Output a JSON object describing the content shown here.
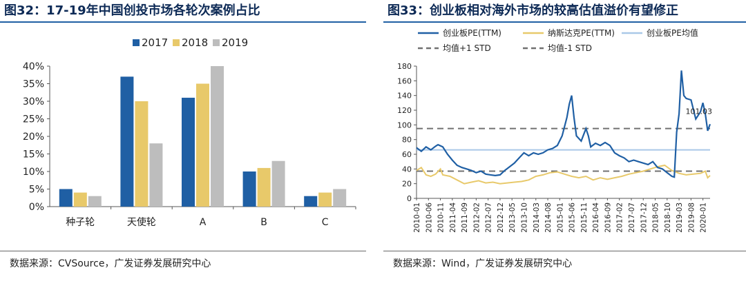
{
  "left": {
    "title": "图32：17-19年中国创投市场各轮次案例占比",
    "source": "数据来源：CVSource，广发证券发展研究中心"
  },
  "right": {
    "title": "图33：创业板相对海外市场的较高估值溢价有望修正",
    "source": "数据来源：Wind，广发证券发展研究中心"
  },
  "colors": {
    "y2017": "#1f5fa4",
    "y2018": "#e8c96a",
    "y2019": "#bdbdbd",
    "chinext": "#1f5fa4",
    "nasdaq": "#e8c96a",
    "mean": "#a9c8e8",
    "std": "#707070",
    "title": "#0d2a56"
  },
  "chart_data": [
    {
      "type": "bar",
      "categories": [
        "种子轮",
        "天使轮",
        "A",
        "B",
        "C"
      ],
      "series": [
        {
          "name": "2017",
          "values": [
            5,
            37,
            31,
            10,
            3
          ]
        },
        {
          "name": "2018",
          "values": [
            4,
            30,
            35,
            11,
            4
          ]
        },
        {
          "name": "2019",
          "values": [
            3,
            18,
            40,
            13,
            5
          ]
        }
      ],
      "ylim": [
        0,
        40
      ],
      "yticks": [
        "0%",
        "5%",
        "10%",
        "15%",
        "20%",
        "25%",
        "30%",
        "35%",
        "40%"
      ],
      "legend": "top",
      "grid": false
    },
    {
      "type": "line",
      "x_ticks": [
        "2010-01",
        "2010-06",
        "2010-11",
        "2011-04",
        "2011-09",
        "2012-02",
        "2012-07",
        "2012-12",
        "2013-05",
        "2013-10",
        "2014-03",
        "2014-08",
        "2015-01",
        "2015-06",
        "2015-11",
        "2016-04",
        "2016-09",
        "2017-02",
        "2017-07",
        "2017-12",
        "2018-05",
        "2018-10",
        "2019-03",
        "2019-08",
        "2020-01"
      ],
      "ylim": [
        0,
        180
      ],
      "yticks": [
        "0",
        "20",
        "40",
        "60",
        "80",
        "100",
        "120",
        "140",
        "160",
        "180"
      ],
      "legend": "top",
      "grid": false,
      "series": [
        {
          "name": "创业板PE(TTM)",
          "points": [
            [
              "2010-01",
              69
            ],
            [
              "2010-03",
              64
            ],
            [
              "2010-05",
              70
            ],
            [
              "2010-07",
              66
            ],
            [
              "2010-09",
              71
            ],
            [
              "2010-10",
              73
            ],
            [
              "2010-12",
              70
            ],
            [
              "2011-02",
              60
            ],
            [
              "2011-04",
              52
            ],
            [
              "2011-06",
              45
            ],
            [
              "2011-08",
              42
            ],
            [
              "2011-10",
              40
            ],
            [
              "2011-12",
              38
            ],
            [
              "2012-02",
              35
            ],
            [
              "2012-04",
              37
            ],
            [
              "2012-06",
              33
            ],
            [
              "2012-08",
              32
            ],
            [
              "2012-10",
              31
            ],
            [
              "2012-12",
              32
            ],
            [
              "2013-02",
              38
            ],
            [
              "2013-04",
              43
            ],
            [
              "2013-06",
              48
            ],
            [
              "2013-08",
              55
            ],
            [
              "2013-10",
              62
            ],
            [
              "2013-12",
              58
            ],
            [
              "2014-02",
              62
            ],
            [
              "2014-04",
              60
            ],
            [
              "2014-06",
              62
            ],
            [
              "2014-08",
              66
            ],
            [
              "2014-10",
              68
            ],
            [
              "2014-12",
              72
            ],
            [
              "2015-02",
              85
            ],
            [
              "2015-04",
              110
            ],
            [
              "2015-05",
              128
            ],
            [
              "2015-06",
              140
            ],
            [
              "2015-07",
              110
            ],
            [
              "2015-08",
              85
            ],
            [
              "2015-10",
              78
            ],
            [
              "2015-12",
              95
            ],
            [
              "2016-01",
              85
            ],
            [
              "2016-02",
              70
            ],
            [
              "2016-04",
              75
            ],
            [
              "2016-06",
              72
            ],
            [
              "2016-08",
              76
            ],
            [
              "2016-10",
              72
            ],
            [
              "2016-12",
              62
            ],
            [
              "2017-02",
              58
            ],
            [
              "2017-04",
              55
            ],
            [
              "2017-06",
              50
            ],
            [
              "2017-08",
              52
            ],
            [
              "2017-10",
              50
            ],
            [
              "2017-12",
              48
            ],
            [
              "2018-02",
              46
            ],
            [
              "2018-04",
              50
            ],
            [
              "2018-06",
              42
            ],
            [
              "2018-08",
              40
            ],
            [
              "2018-10",
              35
            ],
            [
              "2018-12",
              30
            ],
            [
              "2019-01",
              29
            ],
            [
              "2019-02",
              90
            ],
            [
              "2019-03",
              115
            ],
            [
              "2019-04",
              174
            ],
            [
              "2019-05",
              140
            ],
            [
              "2019-06",
              136
            ],
            [
              "2019-08",
              134
            ],
            [
              "2019-10",
              108
            ],
            [
              "2019-12",
              118
            ],
            [
              "2020-01",
              130
            ],
            [
              "2020-02",
              115
            ],
            [
              "2020-03",
              92
            ],
            [
              "2020-04",
              101
            ]
          ],
          "end_label": "101.03"
        },
        {
          "name": "纳斯达克PE(TTM)",
          "points": [
            [
              "2010-01",
              38
            ],
            [
              "2010-03",
              42
            ],
            [
              "2010-05",
              32
            ],
            [
              "2010-07",
              30
            ],
            [
              "2010-09",
              33
            ],
            [
              "2010-11",
              40
            ],
            [
              "2010-12",
              32
            ],
            [
              "2011-03",
              30
            ],
            [
              "2011-06",
              25
            ],
            [
              "2011-09",
              20
            ],
            [
              "2011-12",
              22
            ],
            [
              "2012-03",
              24
            ],
            [
              "2012-06",
              21
            ],
            [
              "2012-09",
              22
            ],
            [
              "2012-12",
              20
            ],
            [
              "2013-03",
              21
            ],
            [
              "2013-06",
              22
            ],
            [
              "2013-09",
              23
            ],
            [
              "2013-12",
              25
            ],
            [
              "2014-03",
              30
            ],
            [
              "2014-06",
              32
            ],
            [
              "2014-09",
              35
            ],
            [
              "2014-12",
              36
            ],
            [
              "2015-03",
              33
            ],
            [
              "2015-06",
              30
            ],
            [
              "2015-09",
              28
            ],
            [
              "2015-12",
              30
            ],
            [
              "2016-03",
              25
            ],
            [
              "2016-06",
              28
            ],
            [
              "2016-09",
              26
            ],
            [
              "2016-12",
              28
            ],
            [
              "2017-03",
              30
            ],
            [
              "2017-06",
              33
            ],
            [
              "2017-09",
              35
            ],
            [
              "2017-12",
              37
            ],
            [
              "2018-03",
              40
            ],
            [
              "2018-06",
              43
            ],
            [
              "2018-09",
              45
            ],
            [
              "2018-12",
              38
            ],
            [
              "2019-03",
              34
            ],
            [
              "2019-06",
              32
            ],
            [
              "2019-09",
              33
            ],
            [
              "2019-12",
              34
            ],
            [
              "2020-02",
              37
            ],
            [
              "2020-03",
              28
            ],
            [
              "2020-04",
              31
            ]
          ]
        },
        {
          "name": "创业板PE均值",
          "constant": 66
        },
        {
          "name": "均值+1 STD",
          "constant": 95
        },
        {
          "name": "均值-1 STD",
          "constant": 37
        }
      ]
    }
  ]
}
